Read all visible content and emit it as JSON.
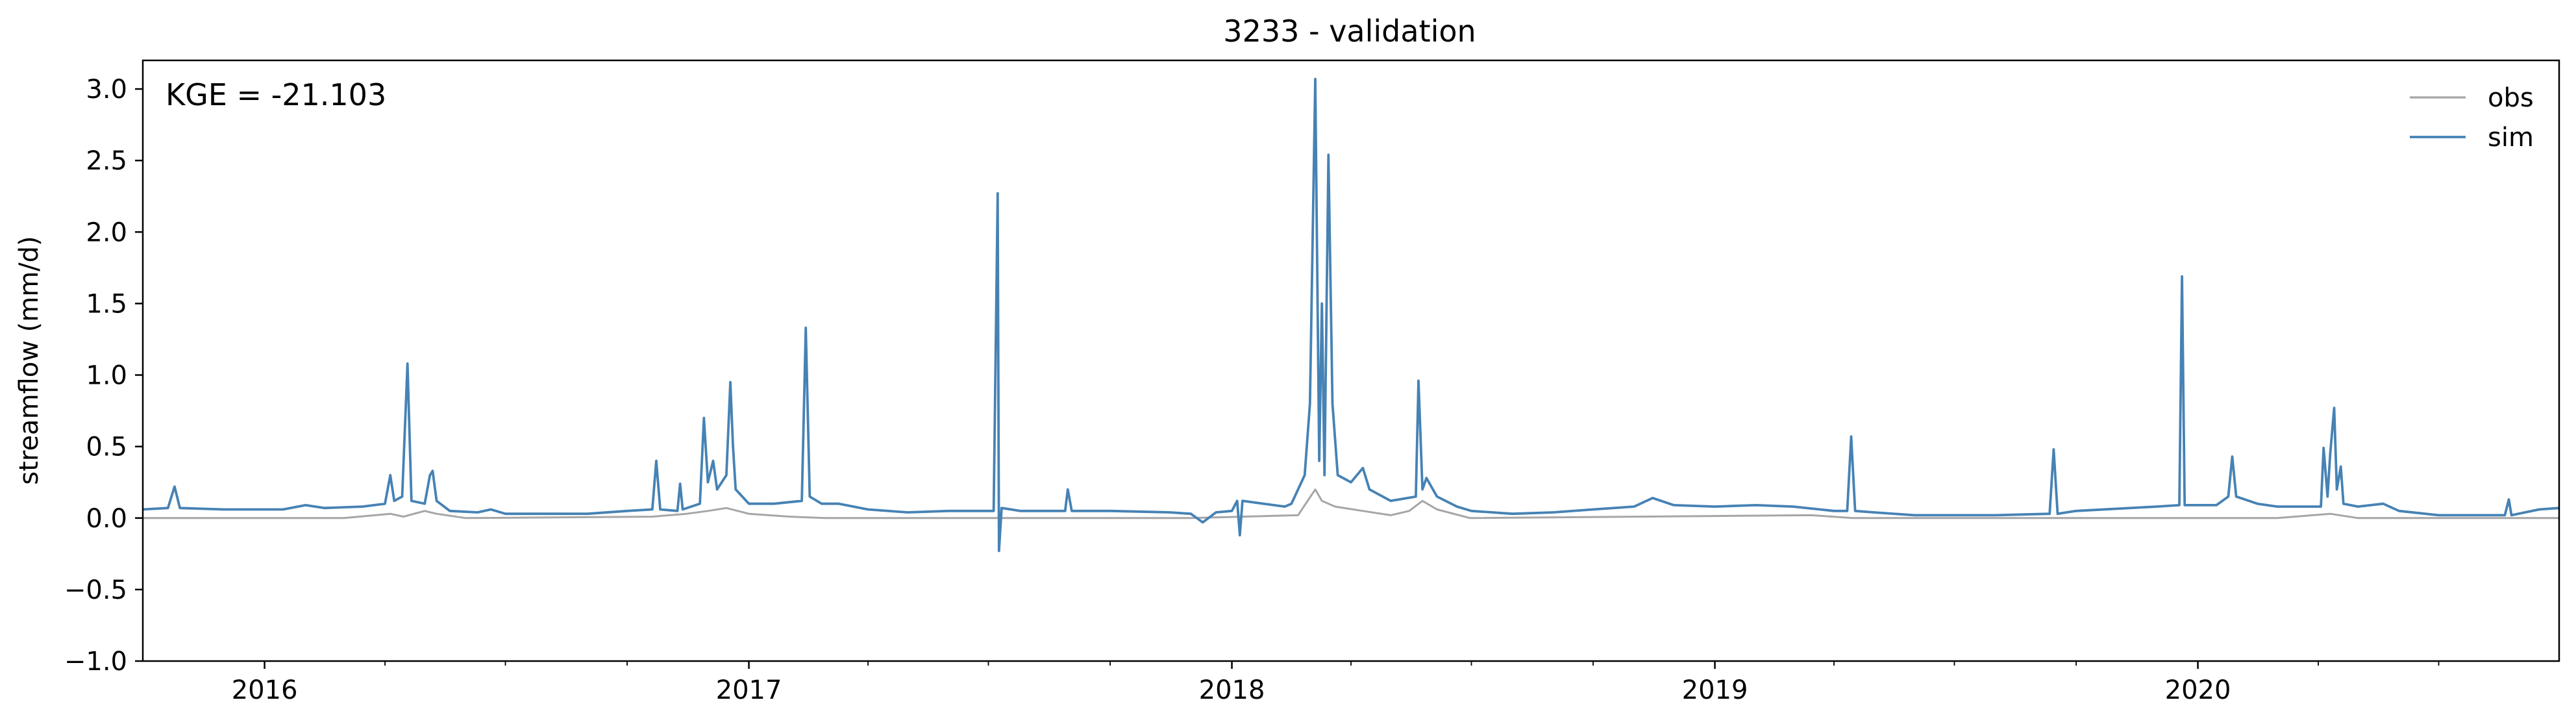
{
  "chart_data": {
    "type": "line",
    "title": "3233 - validation",
    "xlabel": "",
    "ylabel": "streamflow (mm/d)",
    "annotation": "KGE = -21.103",
    "x_range": [
      "2015-10-01",
      "2020-09-30"
    ],
    "ylim": [
      -1.0,
      3.2
    ],
    "y_ticks": [
      -1.0,
      -0.5,
      0.0,
      0.5,
      1.0,
      1.5,
      2.0,
      2.5,
      3.0
    ],
    "y_tick_labels": [
      "−1.0",
      "−0.5",
      "0.0",
      "0.5",
      "1.0",
      "1.5",
      "2.0",
      "2.5",
      "3.0"
    ],
    "x_ticks": [
      "2016-01-01",
      "2017-01-01",
      "2018-01-01",
      "2019-01-01",
      "2020-01-01"
    ],
    "x_tick_labels": [
      "2016",
      "2017",
      "2018",
      "2019",
      "2020"
    ],
    "x_minor_ticks": [
      "2016-04-01",
      "2016-07-01",
      "2016-10-01",
      "2017-04-01",
      "2017-07-01",
      "2017-10-01",
      "2018-04-01",
      "2018-07-01",
      "2018-10-01",
      "2019-04-01",
      "2019-07-01",
      "2019-10-01",
      "2020-04-01",
      "2020-07-01"
    ],
    "grid": false,
    "legend_position": "top-right",
    "colors": {
      "obs": "#a6a6a6",
      "sim": "#4682b4"
    },
    "series": [
      {
        "name": "obs",
        "points": [
          [
            "2015-10-01",
            0.0
          ],
          [
            "2016-03-01",
            0.0
          ],
          [
            "2016-04-05",
            0.03
          ],
          [
            "2016-04-15",
            0.01
          ],
          [
            "2016-05-01",
            0.05
          ],
          [
            "2016-05-10",
            0.03
          ],
          [
            "2016-06-01",
            0.0
          ],
          [
            "2016-10-20",
            0.01
          ],
          [
            "2016-11-15",
            0.03
          ],
          [
            "2016-12-01",
            0.05
          ],
          [
            "2016-12-15",
            0.07
          ],
          [
            "2017-01-01",
            0.03
          ],
          [
            "2017-02-01",
            0.01
          ],
          [
            "2017-03-01",
            0.0
          ],
          [
            "2017-12-01",
            0.0
          ],
          [
            "2018-02-20",
            0.02
          ],
          [
            "2018-03-05",
            0.2
          ],
          [
            "2018-03-10",
            0.12
          ],
          [
            "2018-03-20",
            0.08
          ],
          [
            "2018-04-10",
            0.05
          ],
          [
            "2018-05-01",
            0.02
          ],
          [
            "2018-05-15",
            0.05
          ],
          [
            "2018-05-25",
            0.12
          ],
          [
            "2018-06-05",
            0.06
          ],
          [
            "2018-06-30",
            0.0
          ],
          [
            "2019-03-15",
            0.02
          ],
          [
            "2019-04-15",
            0.0
          ],
          [
            "2020-03-01",
            0.0
          ],
          [
            "2020-04-10",
            0.03
          ],
          [
            "2020-05-01",
            0.0
          ],
          [
            "2020-09-30",
            0.0
          ]
        ]
      },
      {
        "name": "sim",
        "points": [
          [
            "2015-10-01",
            0.06
          ],
          [
            "2015-10-20",
            0.07
          ],
          [
            "2015-10-25",
            0.22
          ],
          [
            "2015-10-29",
            0.07
          ],
          [
            "2015-12-01",
            0.06
          ],
          [
            "2016-01-15",
            0.06
          ],
          [
            "2016-02-01",
            0.09
          ],
          [
            "2016-02-15",
            0.07
          ],
          [
            "2016-03-15",
            0.08
          ],
          [
            "2016-04-01",
            0.1
          ],
          [
            "2016-04-05",
            0.3
          ],
          [
            "2016-04-08",
            0.12
          ],
          [
            "2016-04-14",
            0.15
          ],
          [
            "2016-04-18",
            1.08
          ],
          [
            "2016-04-21",
            0.12
          ],
          [
            "2016-05-01",
            0.1
          ],
          [
            "2016-05-05",
            0.3
          ],
          [
            "2016-05-07",
            0.33
          ],
          [
            "2016-05-10",
            0.12
          ],
          [
            "2016-05-20",
            0.05
          ],
          [
            "2016-06-10",
            0.04
          ],
          [
            "2016-06-20",
            0.06
          ],
          [
            "2016-07-01",
            0.03
          ],
          [
            "2016-09-01",
            0.03
          ],
          [
            "2016-10-01",
            0.05
          ],
          [
            "2016-10-20",
            0.06
          ],
          [
            "2016-10-23",
            0.4
          ],
          [
            "2016-10-26",
            0.06
          ],
          [
            "2016-11-08",
            0.05
          ],
          [
            "2016-11-10",
            0.24
          ],
          [
            "2016-11-12",
            0.06
          ],
          [
            "2016-11-25",
            0.1
          ],
          [
            "2016-11-28",
            0.7
          ],
          [
            "2016-12-01",
            0.25
          ],
          [
            "2016-12-05",
            0.4
          ],
          [
            "2016-12-08",
            0.2
          ],
          [
            "2016-12-15",
            0.3
          ],
          [
            "2016-12-18",
            0.95
          ],
          [
            "2016-12-20",
            0.5
          ],
          [
            "2016-12-22",
            0.2
          ],
          [
            "2017-01-01",
            0.1
          ],
          [
            "2017-01-20",
            0.1
          ],
          [
            "2017-02-10",
            0.12
          ],
          [
            "2017-02-13",
            1.33
          ],
          [
            "2017-02-16",
            0.15
          ],
          [
            "2017-02-25",
            0.1
          ],
          [
            "2017-03-10",
            0.1
          ],
          [
            "2017-04-01",
            0.06
          ],
          [
            "2017-05-01",
            0.04
          ],
          [
            "2017-06-01",
            0.05
          ],
          [
            "2017-07-05",
            0.05
          ],
          [
            "2017-07-08",
            2.27
          ],
          [
            "2017-07-09",
            -0.23
          ],
          [
            "2017-07-11",
            0.07
          ],
          [
            "2017-07-25",
            0.05
          ],
          [
            "2017-08-28",
            0.05
          ],
          [
            "2017-08-30",
            0.2
          ],
          [
            "2017-09-02",
            0.05
          ],
          [
            "2017-10-01",
            0.05
          ],
          [
            "2017-11-15",
            0.04
          ],
          [
            "2017-12-01",
            0.03
          ],
          [
            "2017-12-10",
            -0.03
          ],
          [
            "2017-12-20",
            0.04
          ],
          [
            "2018-01-01",
            0.05
          ],
          [
            "2018-01-05",
            0.12
          ],
          [
            "2018-01-07",
            -0.12
          ],
          [
            "2018-01-09",
            0.12
          ],
          [
            "2018-01-25",
            0.1
          ],
          [
            "2018-02-10",
            0.08
          ],
          [
            "2018-02-15",
            0.1
          ],
          [
            "2018-02-25",
            0.3
          ],
          [
            "2018-03-01",
            0.8
          ],
          [
            "2018-03-05",
            3.07
          ],
          [
            "2018-03-08",
            0.4
          ],
          [
            "2018-03-10",
            1.5
          ],
          [
            "2018-03-12",
            0.3
          ],
          [
            "2018-03-15",
            2.54
          ],
          [
            "2018-03-18",
            0.8
          ],
          [
            "2018-03-22",
            0.3
          ],
          [
            "2018-04-01",
            0.25
          ],
          [
            "2018-04-10",
            0.35
          ],
          [
            "2018-04-15",
            0.2
          ],
          [
            "2018-05-01",
            0.12
          ],
          [
            "2018-05-20",
            0.15
          ],
          [
            "2018-05-22",
            0.96
          ],
          [
            "2018-05-25",
            0.2
          ],
          [
            "2018-05-28",
            0.28
          ],
          [
            "2018-06-05",
            0.15
          ],
          [
            "2018-06-20",
            0.08
          ],
          [
            "2018-07-01",
            0.05
          ],
          [
            "2018-08-01",
            0.03
          ],
          [
            "2018-09-01",
            0.04
          ],
          [
            "2018-10-01",
            0.06
          ],
          [
            "2018-11-01",
            0.08
          ],
          [
            "2018-11-15",
            0.14
          ],
          [
            "2018-12-01",
            0.09
          ],
          [
            "2019-01-01",
            0.08
          ],
          [
            "2019-02-01",
            0.09
          ],
          [
            "2019-03-01",
            0.08
          ],
          [
            "2019-04-01",
            0.05
          ],
          [
            "2019-04-11",
            0.05
          ],
          [
            "2019-04-14",
            0.57
          ],
          [
            "2019-04-17",
            0.05
          ],
          [
            "2019-05-01",
            0.04
          ],
          [
            "2019-06-01",
            0.02
          ],
          [
            "2019-08-01",
            0.02
          ],
          [
            "2019-09-11",
            0.03
          ],
          [
            "2019-09-14",
            0.48
          ],
          [
            "2019-09-17",
            0.03
          ],
          [
            "2019-10-01",
            0.05
          ],
          [
            "2019-12-01",
            0.08
          ],
          [
            "2019-12-18",
            0.09
          ],
          [
            "2019-12-20",
            1.69
          ],
          [
            "2019-12-22",
            0.09
          ],
          [
            "2020-01-15",
            0.09
          ],
          [
            "2020-01-24",
            0.15
          ],
          [
            "2020-01-27",
            0.43
          ],
          [
            "2020-01-30",
            0.15
          ],
          [
            "2020-02-15",
            0.1
          ],
          [
            "2020-03-01",
            0.08
          ],
          [
            "2020-04-03",
            0.08
          ],
          [
            "2020-04-05",
            0.49
          ],
          [
            "2020-04-08",
            0.15
          ],
          [
            "2020-04-10",
            0.45
          ],
          [
            "2020-04-13",
            0.77
          ],
          [
            "2020-04-15",
            0.2
          ],
          [
            "2020-04-18",
            0.36
          ],
          [
            "2020-04-20",
            0.1
          ],
          [
            "2020-05-01",
            0.08
          ],
          [
            "2020-05-20",
            0.1
          ],
          [
            "2020-06-01",
            0.05
          ],
          [
            "2020-07-01",
            0.02
          ],
          [
            "2020-08-20",
            0.02
          ],
          [
            "2020-08-23",
            0.13
          ],
          [
            "2020-08-25",
            0.02
          ],
          [
            "2020-09-15",
            0.06
          ],
          [
            "2020-09-30",
            0.07
          ]
        ]
      }
    ]
  }
}
